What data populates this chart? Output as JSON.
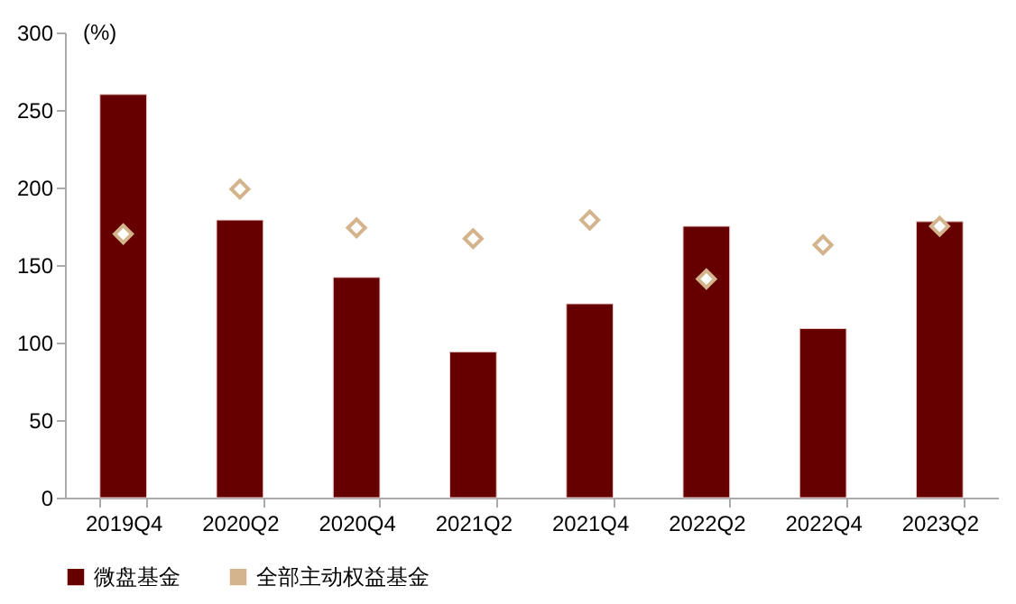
{
  "chart_data": {
    "type": "bar",
    "ylabel": "(%)",
    "categories": [
      "2019Q4",
      "2020Q2",
      "2020Q4",
      "2021Q2",
      "2021Q4",
      "2022Q2",
      "2022Q4",
      "2023Q2"
    ],
    "series": [
      {
        "name": "微盘基金",
        "color": "#660000",
        "values": [
          260,
          179,
          142,
          94,
          125,
          175,
          109,
          178
        ]
      },
      {
        "name": "全部主动权益基金",
        "type": "scatter",
        "marker": "diamond",
        "color": "#d4b48c",
        "values": [
          170,
          199,
          174,
          167,
          179,
          141,
          163,
          175
        ]
      }
    ],
    "ylim": [
      0,
      300
    ],
    "yticks": [
      0,
      50,
      100,
      150,
      200,
      250,
      300
    ],
    "grid": false,
    "legend": "bottom"
  }
}
